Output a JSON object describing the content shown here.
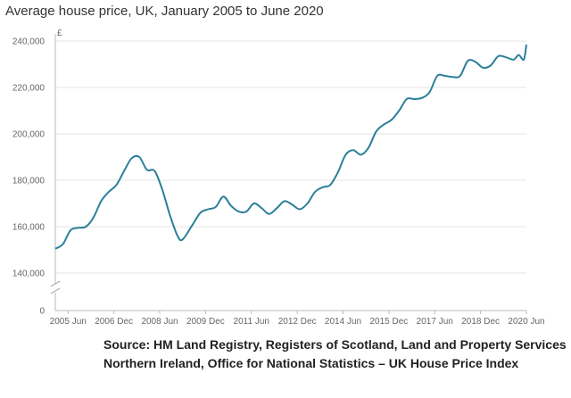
{
  "chart_data": {
    "type": "line",
    "title": "Average house price, UK, January 2005 to June 2020",
    "ylabel": "£",
    "xlabel": "",
    "ylim": [
      140000,
      240000
    ],
    "y_ticks": [
      {
        "value": 240000,
        "label": "240,000"
      },
      {
        "value": 220000,
        "label": "220,000"
      },
      {
        "value": 200000,
        "label": "200,000"
      },
      {
        "value": 180000,
        "label": "180,000"
      },
      {
        "value": 160000,
        "label": "160,000"
      },
      {
        "value": 140000,
        "label": "140,000"
      }
    ],
    "y_zero_label": "0",
    "axis_break": true,
    "x_ticks": [
      {
        "date": "2005-06",
        "label": "2005 Jun"
      },
      {
        "date": "2006-12",
        "label": "2006 Dec"
      },
      {
        "date": "2008-06",
        "label": "2008 Jun"
      },
      {
        "date": "2009-12",
        "label": "2009 Dec"
      },
      {
        "date": "2011-06",
        "label": "2011 Jun"
      },
      {
        "date": "2012-12",
        "label": "2012 Dec"
      },
      {
        "date": "2014-06",
        "label": "2014 Jun"
      },
      {
        "date": "2015-12",
        "label": "2015 Dec"
      },
      {
        "date": "2017-06",
        "label": "2017 Jun"
      },
      {
        "date": "2018-12",
        "label": "2018 Dec"
      },
      {
        "date": "2020-06",
        "label": "2020 Jun"
      }
    ],
    "series": [
      {
        "color": "#2a7f9a",
        "points": [
          [
            "2005-01",
            150500
          ],
          [
            "2005-04",
            152500
          ],
          [
            "2005-07",
            158500
          ],
          [
            "2005-10",
            159500
          ],
          [
            "2006-01",
            160000
          ],
          [
            "2006-04",
            164000
          ],
          [
            "2006-07",
            171000
          ],
          [
            "2006-10",
            175000
          ],
          [
            "2007-01",
            178000
          ],
          [
            "2007-04",
            184000
          ],
          [
            "2007-07",
            189500
          ],
          [
            "2007-10",
            190000
          ],
          [
            "2008-01",
            184500
          ],
          [
            "2008-04",
            184000
          ],
          [
            "2008-07",
            176000
          ],
          [
            "2008-10",
            165000
          ],
          [
            "2009-01",
            156000
          ],
          [
            "2009-03",
            154500
          ],
          [
            "2009-07",
            161000
          ],
          [
            "2009-10",
            166000
          ],
          [
            "2010-01",
            167500
          ],
          [
            "2010-04",
            168500
          ],
          [
            "2010-07",
            173000
          ],
          [
            "2010-10",
            169000
          ],
          [
            "2011-01",
            166500
          ],
          [
            "2011-04",
            166500
          ],
          [
            "2011-07",
            170000
          ],
          [
            "2011-10",
            168000
          ],
          [
            "2012-01",
            165500
          ],
          [
            "2012-04",
            168000
          ],
          [
            "2012-07",
            171000
          ],
          [
            "2012-10",
            169500
          ],
          [
            "2013-01",
            167500
          ],
          [
            "2013-04",
            170000
          ],
          [
            "2013-07",
            175000
          ],
          [
            "2013-10",
            177000
          ],
          [
            "2014-01",
            178000
          ],
          [
            "2014-04",
            183500
          ],
          [
            "2014-07",
            191000
          ],
          [
            "2014-10",
            193000
          ],
          [
            "2015-01",
            191000
          ],
          [
            "2015-04",
            194000
          ],
          [
            "2015-07",
            201000
          ],
          [
            "2015-10",
            204000
          ],
          [
            "2016-01",
            206000
          ],
          [
            "2016-04",
            210000
          ],
          [
            "2016-07",
            215000
          ],
          [
            "2016-10",
            215000
          ],
          [
            "2017-01",
            215500
          ],
          [
            "2017-04",
            218000
          ],
          [
            "2017-07",
            225000
          ],
          [
            "2017-10",
            225000
          ],
          [
            "2018-01",
            224500
          ],
          [
            "2018-04",
            225000
          ],
          [
            "2018-07",
            231500
          ],
          [
            "2018-10",
            231000
          ],
          [
            "2019-01",
            228500
          ],
          [
            "2019-04",
            229500
          ],
          [
            "2019-07",
            233500
          ],
          [
            "2019-10",
            233000
          ],
          [
            "2020-01",
            232000
          ],
          [
            "2020-03",
            234000
          ],
          [
            "2020-05",
            232000
          ],
          [
            "2020-06",
            238500
          ]
        ]
      }
    ],
    "grid": true,
    "legend": "none"
  },
  "source_text": "Source: HM Land Registry, Registers of Scotland, Land and Property Services Northern Ireland, Office for National Statistics – UK House Price Index"
}
